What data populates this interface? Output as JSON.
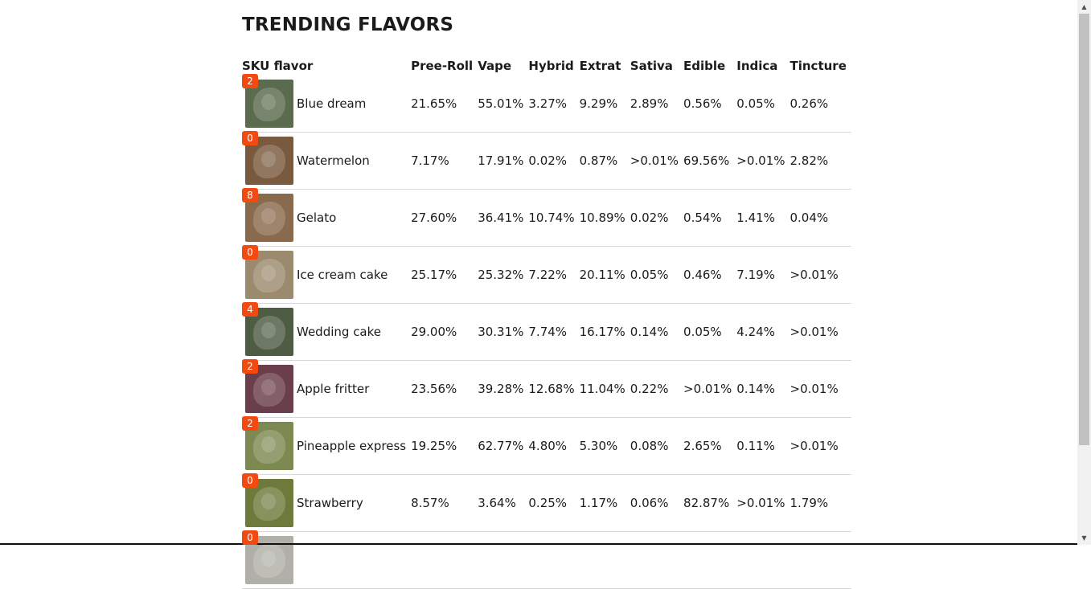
{
  "page": {
    "title": "TRENDING FLAVORS"
  },
  "table": {
    "headers": [
      "SKU flavor",
      "Pree-Roll",
      "Vape",
      "Hybrid",
      "Extrat",
      "Sativa",
      "Edible",
      "Indica",
      "Tincture"
    ],
    "rows": [
      {
        "badge": "2",
        "name": "Blue dream",
        "image_icon": "cannabis-bud-icon",
        "image_color": "#5b6b4e",
        "values": [
          "21.65%",
          "55.01%",
          "3.27%",
          "9.29%",
          "2.89%",
          "0.56%",
          "0.05%",
          "0.26%"
        ]
      },
      {
        "badge": "0",
        "name": "Watermelon",
        "image_icon": "cannabis-bud-icon",
        "image_color": "#7a5a3e",
        "values": [
          "7.17%",
          "17.91%",
          "0.02%",
          "0.87%",
          ">0.01%",
          "69.56%",
          ">0.01%",
          "2.82%"
        ]
      },
      {
        "badge": "8",
        "name": "Gelato",
        "image_icon": "cannabis-bud-icon",
        "image_color": "#8a6a4c",
        "values": [
          "27.60%",
          "36.41%",
          "10.74%",
          "10.89%",
          "0.02%",
          "0.54%",
          "1.41%",
          "0.04%"
        ]
      },
      {
        "badge": "0",
        "name": "Ice cream cake",
        "image_icon": "cannabis-bud-icon",
        "image_color": "#9c8a6e",
        "values": [
          "25.17%",
          "25.32%",
          "7.22%",
          "20.11%",
          "0.05%",
          "0.46%",
          "7.19%",
          ">0.01%"
        ]
      },
      {
        "badge": "4",
        "name": "Wedding cake",
        "image_icon": "cannabis-bud-icon",
        "image_color": "#4f5c44",
        "values": [
          "29.00%",
          "30.31%",
          "7.74%",
          "16.17%",
          "0.14%",
          "0.05%",
          "4.24%",
          ">0.01%"
        ]
      },
      {
        "badge": "2",
        "name": "Apple fritter",
        "image_icon": "cannabis-bud-icon",
        "image_color": "#6a3e4a",
        "values": [
          "23.56%",
          "39.28%",
          "12.68%",
          "11.04%",
          "0.22%",
          ">0.01%",
          "0.14%",
          ">0.01%"
        ]
      },
      {
        "badge": "2",
        "name": "Pineapple express",
        "image_icon": "cannabis-bud-icon",
        "image_color": "#7c8a52",
        "values": [
          "19.25%",
          "62.77%",
          "4.80%",
          "5.30%",
          "0.08%",
          "2.65%",
          "0.11%",
          ">0.01%"
        ]
      },
      {
        "badge": "0",
        "name": "Strawberry",
        "image_icon": "cannabis-bud-icon",
        "image_color": "#6e7a3c",
        "values": [
          "8.57%",
          "3.64%",
          "0.25%",
          "1.17%",
          "0.06%",
          "82.87%",
          ">0.01%",
          "1.79%"
        ]
      },
      {
        "badge": "0",
        "name": "",
        "image_icon": "cannabis-bud-icon",
        "image_color": "#b0b0a8",
        "values": [
          "",
          "",
          "",
          "",
          "",
          "",
          "",
          ""
        ]
      }
    ]
  },
  "colors": {
    "badge": "#f24a10",
    "row_divider": "#d8d8d8",
    "scroll_thumb": "#c1c1c1"
  },
  "scrollbar": {
    "up_icon": "scroll-up-arrow-icon",
    "down_icon": "scroll-down-arrow-icon"
  }
}
